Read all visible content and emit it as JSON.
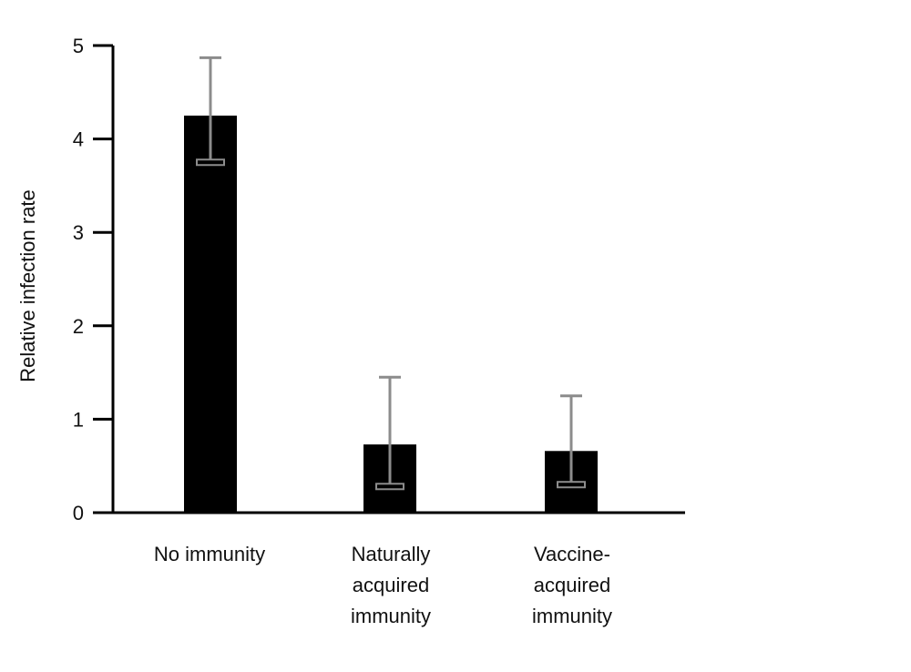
{
  "chart_data": {
    "type": "bar",
    "ylabel": "Relative infection rate",
    "xlabel": "",
    "ylim": [
      0,
      5
    ],
    "yticks": [
      0,
      1,
      2,
      3,
      4,
      5
    ],
    "categories": [
      [
        "No immunity"
      ],
      [
        "Naturally",
        "acquired",
        "immunity"
      ],
      [
        "Vaccine-",
        "acquired",
        "immunity"
      ]
    ],
    "values": [
      4.25,
      0.73,
      0.66
    ],
    "error_low": [
      3.75,
      0.28,
      0.3
    ],
    "error_high": [
      4.87,
      1.45,
      1.25
    ],
    "colors": {
      "bar": "#000000",
      "errorbar": "#8c8c8c",
      "axis": "#000000"
    },
    "grid": false,
    "legend": "none"
  }
}
